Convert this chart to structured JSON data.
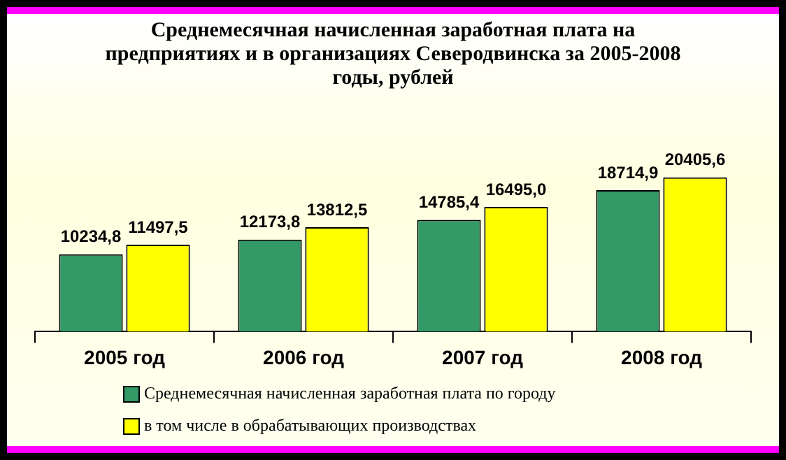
{
  "chart_data": {
    "type": "bar",
    "title": "Среднемесячная начисленная заработная плата на предприятиях и в организациях Северодвинска за 2005-2008 годы, рублей",
    "categories": [
      "2005 год",
      "2006 год",
      "2007 год",
      "2008 год"
    ],
    "series": [
      {
        "name": "Среднемесячная начисленная заработная плата по городу",
        "color": "#339966",
        "values": [
          10234.8,
          12173.8,
          14785.4,
          18714.9
        ],
        "value_labels": [
          "10234,8",
          "12173,8",
          "14785,4",
          "18714,9"
        ]
      },
      {
        "name": "в том числе в обрабатывающих производствах",
        "color": "#ffff00",
        "values": [
          11497.5,
          13812.5,
          16495.0,
          20405.6
        ],
        "value_labels": [
          "11497,5",
          "13812,5",
          "16495,0",
          "20405,6"
        ]
      }
    ],
    "legend": "bottom",
    "grid": false
  }
}
